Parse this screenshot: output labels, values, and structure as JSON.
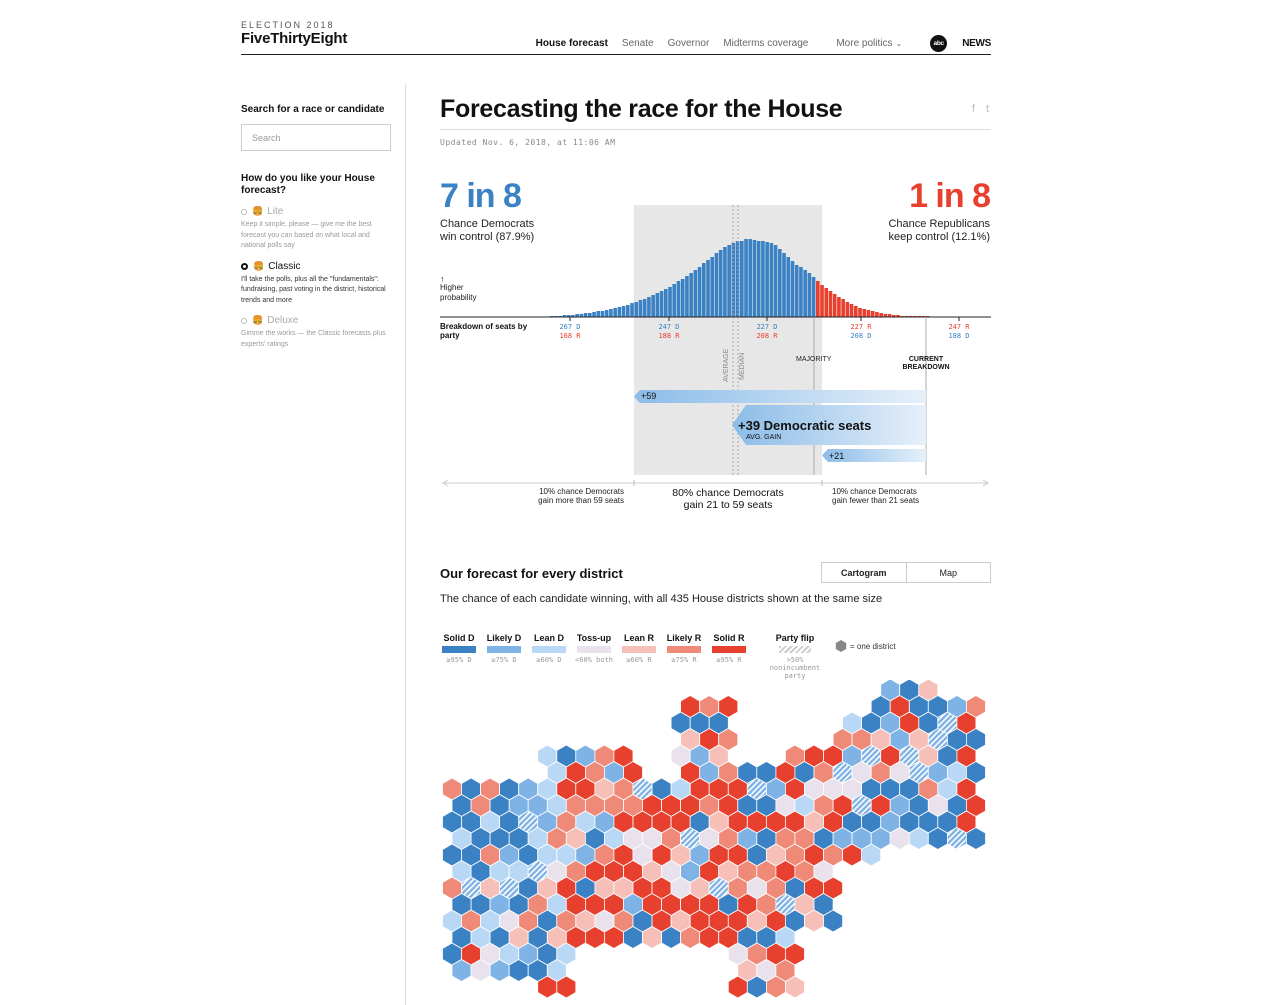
{
  "header": {
    "kicker": "ELECTION 2018",
    "logo": "FiveThirtyEight",
    "nav": [
      "House forecast",
      "Senate",
      "Governor",
      "Midterms coverage",
      "More politics"
    ],
    "nav_chevron": "⌄",
    "abc_disc": "abc",
    "abc_news": "NEWS"
  },
  "sidebar": {
    "search_heading": "Search for a race or candidate",
    "search_placeholder": "Search",
    "model_heading": "How do you like your House forecast?",
    "options": [
      {
        "label": "Lite",
        "desc": "Keep it simple, please — give me the best forecast you can based on what local and national polls say"
      },
      {
        "label": "Classic",
        "desc": "I'll take the polls, plus all the \"fundamentals\": fundraising, past voting in the district, historical trends and more"
      },
      {
        "label": "Deluxe",
        "desc": "Gimme the works — the Classic forecasts plus experts' ratings"
      }
    ]
  },
  "main": {
    "title": "Forecasting the race for the House",
    "share_fb": "f",
    "share_tw": "t",
    "updated": "Updated Nov. 6, 2018, at 11:06 AM",
    "dem_odds": "7 in 8",
    "dem_chance": [
      "Chance Democrats",
      "win control (87.9%)"
    ],
    "rep_odds": "1 in 8",
    "rep_chance": [
      "Chance Republicans",
      "keep control (12.1%)"
    ]
  },
  "colors": {
    "dem": "#3b82c4",
    "rep": "#e8402e",
    "solid_d": "#3b82c4",
    "likely_d": "#7fb2e5",
    "lean_d": "#b9d8f5",
    "tossup": "#e9e2ec",
    "lean_r": "#f6c0b9",
    "likely_r": "#ef8a78",
    "solid_r": "#e8402e"
  },
  "chart_data": {
    "type": "bar",
    "title": "",
    "higher_probability_label": [
      "↑",
      "Higher",
      "probability"
    ],
    "breakdown_label": [
      "Breakdown of seats by",
      "party"
    ],
    "ticks": [
      {
        "d": "267 D",
        "r": "168 R"
      },
      {
        "d": "247 D",
        "r": "188 R"
      },
      {
        "d": "227 D",
        "r": "208 R"
      },
      {
        "r": "227 R",
        "d": "208 D"
      },
      {
        "r": "247 R",
        "d": "188 D"
      }
    ],
    "markers": {
      "average": "AVERAGE",
      "median": "MEDIAN",
      "majority": "MAJORITY",
      "current": [
        "CURRENT",
        "BREAKDOWN"
      ]
    },
    "gains": {
      "high": "+59",
      "avg": "+39 Democratic seats",
      "avg_sub": "AVG. GAIN",
      "low": "+21"
    },
    "ranges": {
      "left": [
        "10% chance Democrats",
        "gain more than 59 seats"
      ],
      "mid": [
        "80% chance Democrats",
        "gain 21 to 59 seats"
      ],
      "right": [
        "10% chance Democrats",
        "gain fewer than 21 seats"
      ]
    },
    "distribution": [
      1,
      1,
      1,
      2,
      2,
      2,
      3,
      3,
      4,
      4,
      5,
      6,
      6,
      7,
      8,
      9,
      10,
      11,
      12,
      14,
      15,
      17,
      18,
      20,
      22,
      24,
      26,
      28,
      30,
      33,
      36,
      38,
      41,
      44,
      47,
      50,
      54,
      57,
      60,
      64,
      67,
      70,
      72,
      74,
      76,
      76,
      78,
      78,
      77,
      76,
      76,
      75,
      74,
      72,
      68,
      64,
      60,
      56,
      52,
      50,
      47,
      44,
      40,
      36,
      32,
      29,
      26,
      23,
      20,
      18,
      15,
      13,
      11,
      9,
      8,
      7,
      6,
      5,
      4,
      3,
      3,
      2,
      2,
      1,
      1,
      1,
      1,
      1,
      1,
      1
    ]
  },
  "district_section": {
    "heading": "Our forecast for every district",
    "toggle": [
      "Cartogram",
      "Map"
    ],
    "subtitle": "The chance of each candidate winning, with all 435 House districts shown at the same size",
    "legend": [
      {
        "name": "Solid D",
        "thr": "≥95% D"
      },
      {
        "name": "Likely D",
        "thr": "≥75% D"
      },
      {
        "name": "Lean D",
        "thr": "≥60% D"
      },
      {
        "name": "Toss-up",
        "thr": "<60% both"
      },
      {
        "name": "Lean R",
        "thr": "≥60% R"
      },
      {
        "name": "Likely R",
        "thr": "≥75% R"
      },
      {
        "name": "Solid R",
        "thr": "≥95% R"
      }
    ],
    "flip": {
      "name": "Party flip",
      "thr": ">50% nonincumbent party"
    },
    "one_district": "= one district"
  }
}
